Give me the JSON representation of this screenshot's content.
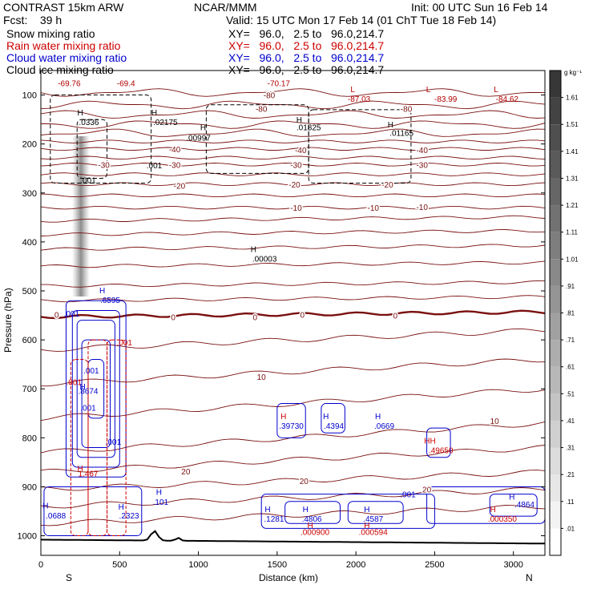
{
  "header": {
    "model": "CONTRAST 15km ARW",
    "org": "NCAR/MMM",
    "init": "Init: 00 UTC Sun 16 Feb 14",
    "fcst": "Fcst:    39 h",
    "valid": "Valid: 15 UTC Mon 17 Feb 14 (01 ChT Tue 18 Feb 14)",
    "lines": [
      {
        "field": "Snow mixing ratio",
        "xy": "XY=   96.0,   2.5 to   96.0,214.7",
        "color": "#000000"
      },
      {
        "field": "Rain water mixing ratio",
        "xy": "XY=   96.0,   2.5 to   96.0,214.7",
        "color": "#cc0000"
      },
      {
        "field": "Cloud water mixing ratio",
        "xy": "XY=   96.0,   2.5 to   96.0,214.7",
        "color": "#0000cc"
      },
      {
        "field": "Cloud ice mixing ratio",
        "xy": "XY=   96.0,   2.5 to   96.0,214.7",
        "color": "#000000"
      }
    ]
  },
  "chart_data": {
    "type": "contour cross-section",
    "ylabel": "Pressure (hPa)",
    "xlabel": "Distance (km)",
    "ylim": [
      1040,
      50
    ],
    "xlim": [
      0,
      3200
    ],
    "yticks": [
      100,
      200,
      300,
      400,
      500,
      600,
      700,
      800,
      900,
      1000
    ],
    "xticks": [
      0,
      500,
      1000,
      1500,
      2000,
      2500,
      3000
    ],
    "endpoints": {
      "left": "S",
      "right": "N"
    },
    "colorbar": {
      "unit": "g kg⁻¹",
      "levels": [
        ".01",
        ".11",
        ".21",
        ".31",
        ".41",
        ".51",
        ".61",
        ".71",
        ".81",
        ".91",
        "1.01",
        "1.11",
        "1.21",
        "1.31",
        "1.41",
        "1.51",
        "1.61"
      ]
    },
    "temperature_contours": {
      "color": "#7a1010",
      "labels": [
        {
          "x": 1450,
          "p": 100,
          "text": "-80"
        },
        {
          "x": 2320,
          "p": 128,
          "text": "-80"
        },
        {
          "x": 1400,
          "p": 128,
          "text": "-80"
        },
        {
          "x": 850,
          "p": 210,
          "text": "-40"
        },
        {
          "x": 1650,
          "p": 212,
          "text": "-40"
        },
        {
          "x": 2420,
          "p": 212,
          "text": "-40"
        },
        {
          "x": 400,
          "p": 242,
          "text": "-30"
        },
        {
          "x": 850,
          "p": 242,
          "text": "-30"
        },
        {
          "x": 1620,
          "p": 242,
          "text": "-30"
        },
        {
          "x": 2420,
          "p": 242,
          "text": "-30"
        },
        {
          "x": 880,
          "p": 285,
          "text": "-20"
        },
        {
          "x": 1610,
          "p": 282,
          "text": "-20"
        },
        {
          "x": 2200,
          "p": 282,
          "text": "-20"
        },
        {
          "x": 1620,
          "p": 330,
          "text": "-10"
        },
        {
          "x": 2110,
          "p": 330,
          "text": "-10"
        },
        {
          "x": 2420,
          "p": 328,
          "text": "-10"
        },
        {
          "x": 100,
          "p": 548,
          "text": "0"
        },
        {
          "x": 840,
          "p": 553,
          "text": "0"
        },
        {
          "x": 1360,
          "p": 553,
          "text": "0"
        },
        {
          "x": 1660,
          "p": 548,
          "text": "0"
        },
        {
          "x": 2250,
          "p": 550,
          "text": "0"
        },
        {
          "x": 1400,
          "p": 675,
          "text": "10"
        },
        {
          "x": 2880,
          "p": 765,
          "text": "10"
        },
        {
          "x": 920,
          "p": 868,
          "text": "20"
        },
        {
          "x": 1670,
          "p": 888,
          "text": "20"
        },
        {
          "x": 2450,
          "p": 905,
          "text": "20"
        }
      ]
    },
    "extrema_labels": [
      {
        "x": 180,
        "p": 75,
        "text": "-69.76",
        "color": "#b00000"
      },
      {
        "x": 540,
        "p": 75,
        "text": "-69.4",
        "color": "#b00000"
      },
      {
        "x": 1510,
        "p": 75,
        "text": "-70.17",
        "color": "#b00000"
      },
      {
        "x": 1980,
        "p": 88,
        "text": "L",
        "color": "#b00000"
      },
      {
        "x": 2020,
        "p": 107,
        "text": "-87.03",
        "color": "#b00000"
      },
      {
        "x": 2460,
        "p": 88,
        "text": "L",
        "color": "#b00000"
      },
      {
        "x": 2570,
        "p": 107,
        "text": "-83.99",
        "color": "#b00000"
      },
      {
        "x": 2890,
        "p": 88,
        "text": "L",
        "color": "#b00000"
      },
      {
        "x": 2960,
        "p": 107,
        "text": "-84.62",
        "color": "#b00000"
      },
      {
        "x": 250,
        "p": 135,
        "text": "H",
        "color": "#000000"
      },
      {
        "x": 305,
        "p": 155,
        "text": ".0336",
        "color": "#000000"
      },
      {
        "x": 720,
        "p": 135,
        "text": "H",
        "color": "#000000"
      },
      {
        "x": 790,
        "p": 155,
        "text": ".02175",
        "color": "#000000"
      },
      {
        "x": 1640,
        "p": 150,
        "text": "H",
        "color": "#000000"
      },
      {
        "x": 1700,
        "p": 165,
        "text": ".01825",
        "color": "#000000"
      },
      {
        "x": 1030,
        "p": 165,
        "text": "H",
        "color": "#000000"
      },
      {
        "x": 1000,
        "p": 187,
        "text": ".00997",
        "color": "#000000"
      },
      {
        "x": 2220,
        "p": 160,
        "text": "H",
        "color": "#000000"
      },
      {
        "x": 2290,
        "p": 177,
        "text": ".01165",
        "color": "#000000"
      },
      {
        "x": 720,
        "p": 243,
        "text": ".001",
        "color": "#000000"
      },
      {
        "x": 300,
        "p": 273,
        "text": ".001",
        "color": "#000000"
      },
      {
        "x": 1350,
        "p": 414,
        "text": "H",
        "color": "#000000"
      },
      {
        "x": 1420,
        "p": 434,
        "text": ".00003",
        "color": "#000000"
      },
      {
        "x": 390,
        "p": 498,
        "text": "H",
        "color": "#0000cc"
      },
      {
        "x": 440,
        "p": 518,
        "text": ".6595",
        "color": "#0000cc"
      },
      {
        "x": 195,
        "p": 546,
        "text": ".001",
        "color": "#0000cc"
      },
      {
        "x": 530,
        "p": 605,
        "text": ".001",
        "color": "#cc0000"
      },
      {
        "x": 320,
        "p": 662,
        "text": ".001",
        "color": "#0000cc"
      },
      {
        "x": 210,
        "p": 686,
        "text": ".001",
        "color": "#cc0000"
      },
      {
        "x": 265,
        "p": 695,
        "text": "H",
        "color": "#0000cc"
      },
      {
        "x": 300,
        "p": 704,
        "text": ".8674",
        "color": "#0000cc"
      },
      {
        "x": 300,
        "p": 738,
        "text": ".001",
        "color": "#0000cc"
      },
      {
        "x": 460,
        "p": 808,
        "text": ".001",
        "color": "#0000cc"
      },
      {
        "x": 250,
        "p": 862,
        "text": "H",
        "color": "#cc0000"
      },
      {
        "x": 300,
        "p": 872,
        "text": "1.467",
        "color": "#cc0000"
      },
      {
        "x": 30,
        "p": 938,
        "text": "H",
        "color": "#0000cc"
      },
      {
        "x": 95,
        "p": 958,
        "text": ".0688",
        "color": "#0000cc"
      },
      {
        "x": 510,
        "p": 940,
        "text": "H",
        "color": "#0000cc"
      },
      {
        "x": 560,
        "p": 958,
        "text": ".2323",
        "color": "#0000cc"
      },
      {
        "x": 750,
        "p": 910,
        "text": "H",
        "color": "#0000cc"
      },
      {
        "x": 760,
        "p": 930,
        "text": ".101",
        "color": "#0000cc"
      },
      {
        "x": 1540,
        "p": 755,
        "text": "H",
        "color": "#cc0000"
      },
      {
        "x": 1590,
        "p": 775,
        "text": ".39730",
        "color": "#0000cc"
      },
      {
        "x": 1810,
        "p": 755,
        "text": "H",
        "color": "#0000cc"
      },
      {
        "x": 1860,
        "p": 775,
        "text": ".4394",
        "color": "#0000cc"
      },
      {
        "x": 2140,
        "p": 755,
        "text": "H",
        "color": "#0000cc"
      },
      {
        "x": 2180,
        "p": 775,
        "text": ".0669",
        "color": "#0000cc"
      },
      {
        "x": 2470,
        "p": 805,
        "text": "HH",
        "color": "#cc0000"
      },
      {
        "x": 2540,
        "p": 825,
        "text": ".49650",
        "color": "#cc0000"
      },
      {
        "x": 1440,
        "p": 945,
        "text": "H",
        "color": "#0000cc"
      },
      {
        "x": 1480,
        "p": 965,
        "text": ".1281",
        "color": "#0000cc"
      },
      {
        "x": 1680,
        "p": 945,
        "text": "H",
        "color": "#0000cc"
      },
      {
        "x": 1720,
        "p": 965,
        "text": ".4806",
        "color": "#0000cc"
      },
      {
        "x": 1710,
        "p": 978,
        "text": "H",
        "color": "#cc0000"
      },
      {
        "x": 1740,
        "p": 992,
        "text": ".000900",
        "color": "#cc0000"
      },
      {
        "x": 2070,
        "p": 945,
        "text": "H",
        "color": "#0000cc"
      },
      {
        "x": 2110,
        "p": 965,
        "text": ".4587",
        "color": "#0000cc"
      },
      {
        "x": 2070,
        "p": 978,
        "text": "H",
        "color": "#cc0000"
      },
      {
        "x": 2110,
        "p": 992,
        "text": ".000594",
        "color": "#cc0000"
      },
      {
        "x": 2330,
        "p": 915,
        "text": ".001",
        "color": "#0000cc"
      },
      {
        "x": 2870,
        "p": 945,
        "text": "H",
        "color": "#cc0000"
      },
      {
        "x": 2930,
        "p": 965,
        "text": ".000350",
        "color": "#cc0000"
      },
      {
        "x": 2990,
        "p": 920,
        "text": "H",
        "color": "#0000cc"
      },
      {
        "x": 3070,
        "p": 935,
        "text": ".4864",
        "color": "#0000cc"
      }
    ]
  }
}
